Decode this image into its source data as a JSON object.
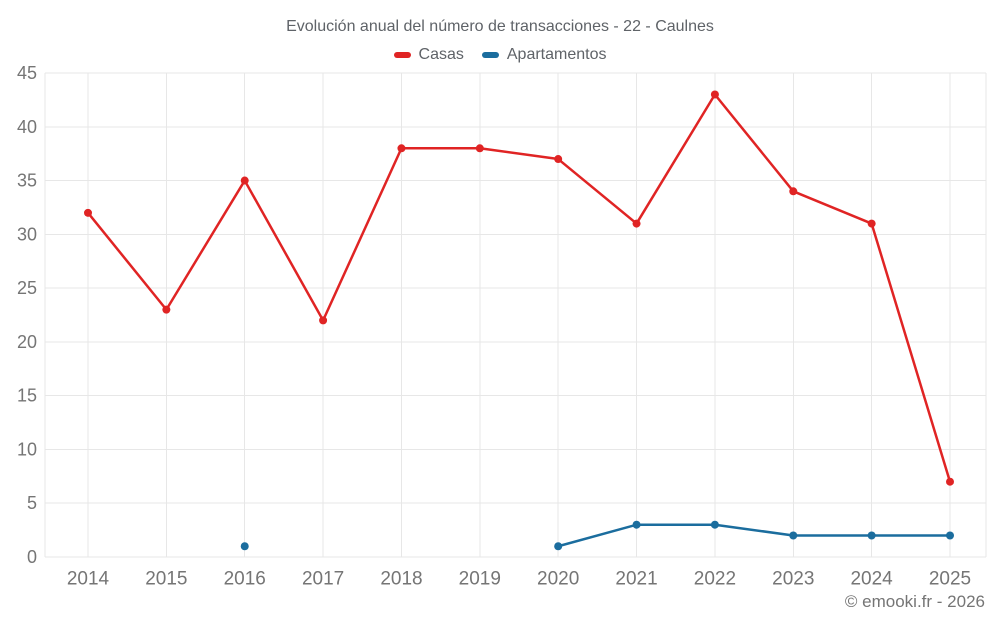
{
  "title": "Evolución anual del número de transacciones - 22 - Caulnes",
  "footer": "© emooki.fr - 2026",
  "legend": [
    {
      "label": "Casas",
      "color": "#e02424"
    },
    {
      "label": "Apartamentos",
      "color": "#1b6d9e"
    }
  ],
  "colors": {
    "casas": "#e02424",
    "apartamentos": "#1b6d9e",
    "grid": "#e7e7e7",
    "tick_label": "#757575",
    "title_text": "#5f6368",
    "background": "#ffffff"
  },
  "chart_data": {
    "type": "line",
    "categories": [
      "2014",
      "2015",
      "2016",
      "2017",
      "2018",
      "2019",
      "2020",
      "2021",
      "2022",
      "2023",
      "2024",
      "2025"
    ],
    "series": [
      {
        "name": "Casas",
        "color": "#e02424",
        "values": [
          32,
          23,
          35,
          22,
          38,
          38,
          37,
          31,
          43,
          34,
          31,
          7
        ]
      },
      {
        "name": "Apartamentos",
        "color": "#1b6d9e",
        "values": [
          null,
          null,
          1,
          null,
          null,
          null,
          1,
          3,
          3,
          2,
          2,
          2
        ]
      }
    ],
    "title": "Evolución anual del número de transacciones - 22 - Caulnes",
    "xlabel": "",
    "ylabel": "",
    "ylim": [
      0,
      45
    ],
    "ytick_step": 5,
    "grid": true,
    "legend_position": "top",
    "annotations": [
      "© emooki.fr - 2026"
    ]
  }
}
